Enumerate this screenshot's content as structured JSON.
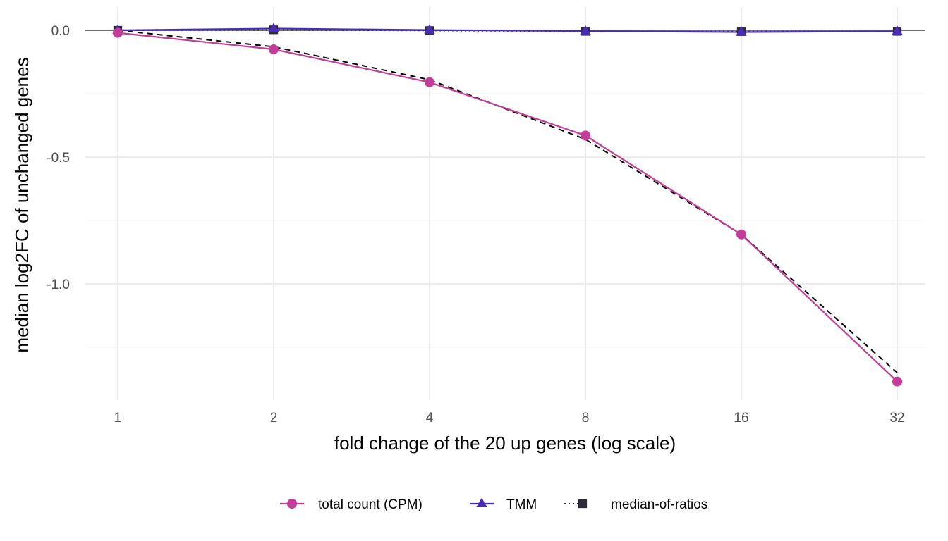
{
  "chart_data": {
    "type": "line",
    "x": [
      1,
      2,
      4,
      8,
      16,
      32
    ],
    "xscale": "log2",
    "xticks": [
      "1",
      "2",
      "4",
      "8",
      "16",
      "32"
    ],
    "xlabel": "fold change of the 20 up genes (log scale)",
    "ylabel": "median log2FC of unchanged genes",
    "yticks": [
      "0.0",
      "-0.5",
      "-1.0"
    ],
    "ylim": [
      -1.42,
      0.03
    ],
    "grid": true,
    "reference_line_y": 0,
    "legend_position": "bottom",
    "series": [
      {
        "name": "total count (CPM)",
        "marker": "circle",
        "line": "solid",
        "color": "#C43C9A",
        "values": [
          -0.01,
          -0.075,
          -0.205,
          -0.415,
          -0.805,
          -1.385
        ]
      },
      {
        "name": "TMM",
        "marker": "triangle",
        "line": "solid",
        "color": "#4A2BB8",
        "values": [
          0.0,
          0.007,
          0.001,
          -0.003,
          -0.007,
          -0.004
        ]
      },
      {
        "name": "median-of-ratios",
        "marker": "square",
        "line": "dotted",
        "color": "#2B2B3A",
        "values": [
          0.0,
          0.002,
          -0.001,
          -0.004,
          -0.005,
          -0.004
        ]
      }
    ],
    "unlabeled_trend": {
      "line": "dashed",
      "color": "#000000",
      "values": [
        0.0,
        -0.065,
        -0.195,
        -0.43,
        -0.805,
        -1.35
      ]
    }
  }
}
